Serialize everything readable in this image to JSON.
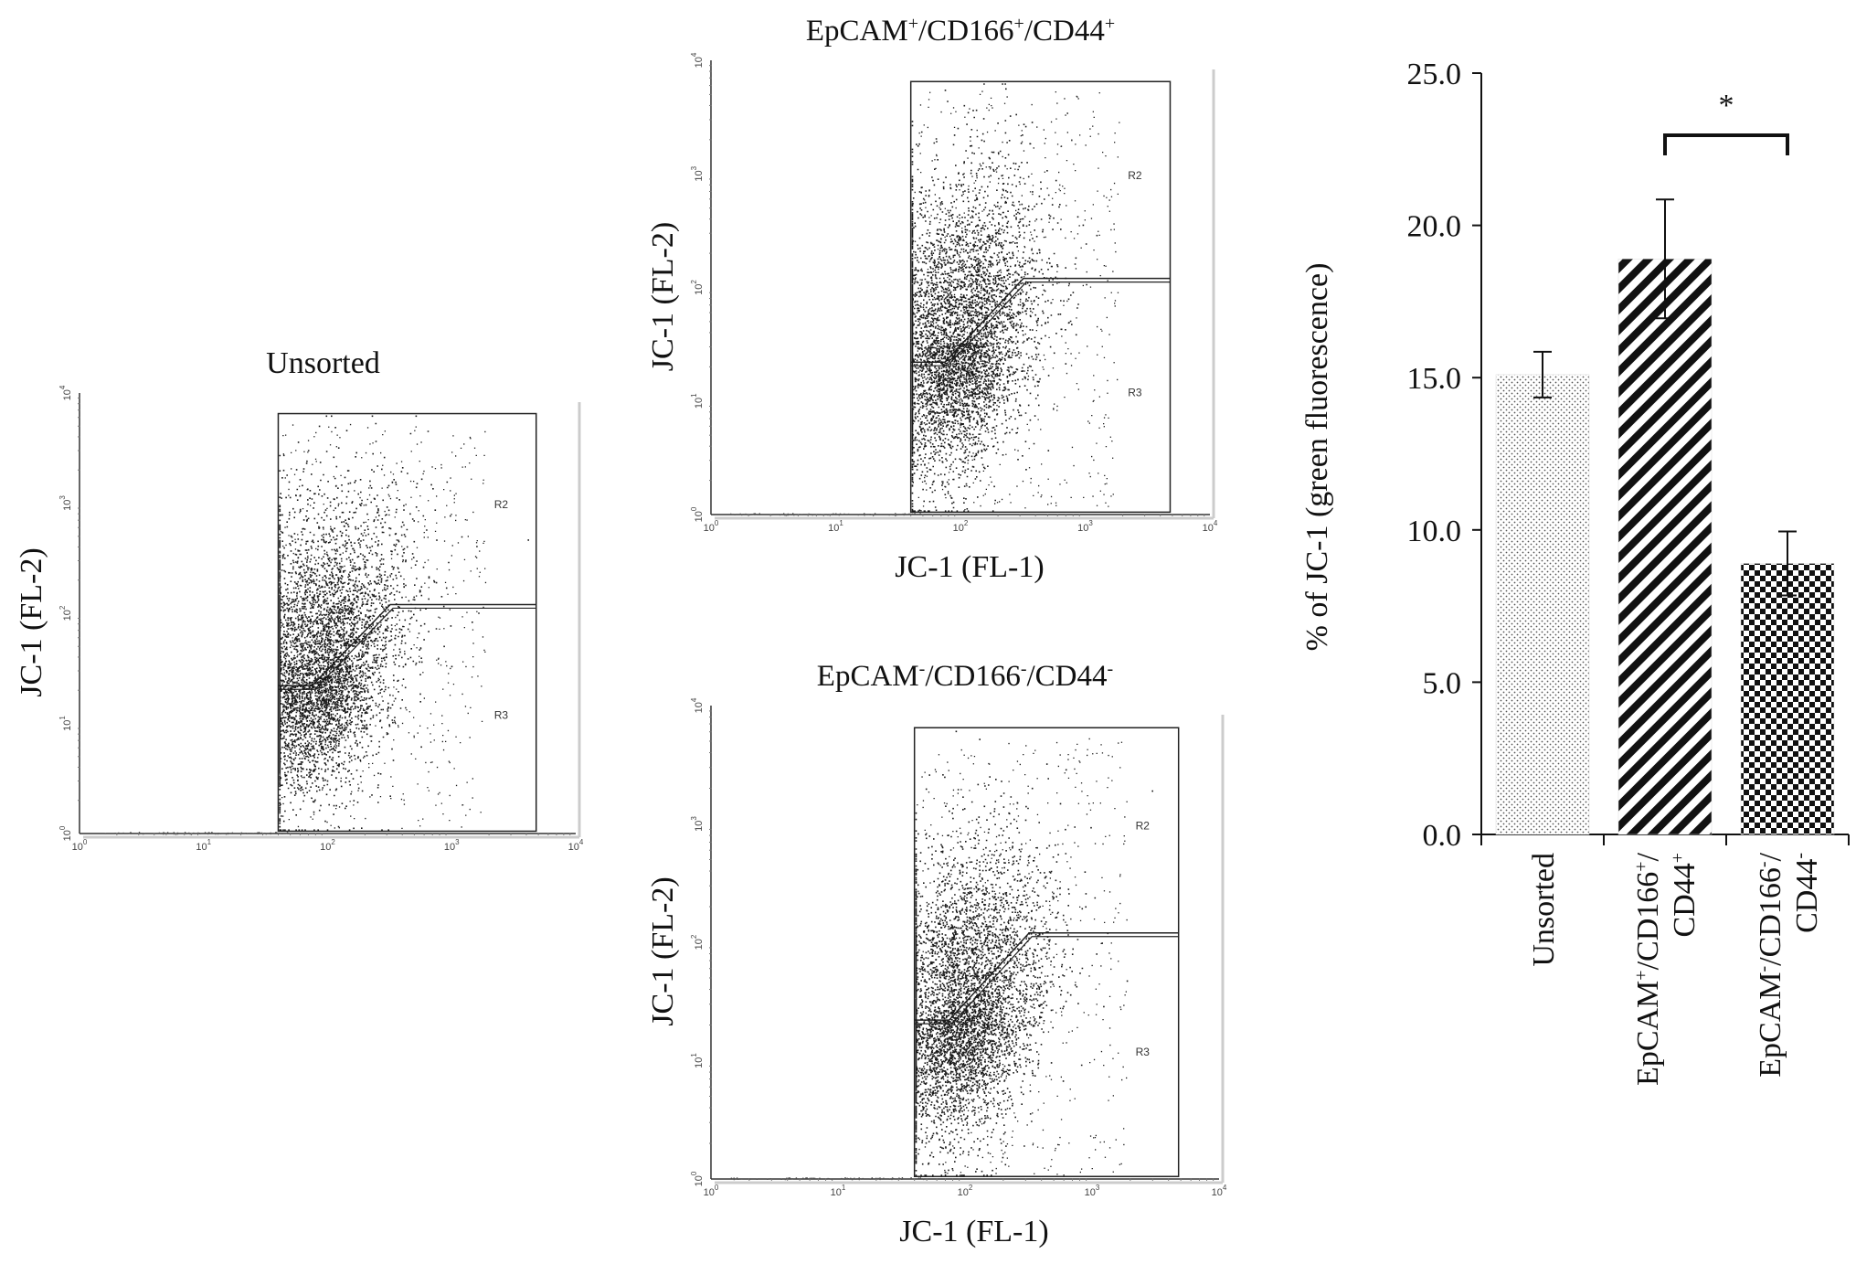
{
  "colors": {
    "ink": "#111111",
    "dot": "#1a1a1a",
    "frame": "#333333",
    "gate": "#222222"
  },
  "chart_data": [
    {
      "type": "scatter",
      "title": "Unsorted",
      "xlabel": "",
      "ylabel": "JC-1 (FL-2)",
      "scale": "log",
      "xlim": [
        1,
        10000
      ],
      "ylim": [
        1,
        10000
      ],
      "x_ticks": [
        "10",
        "10",
        "10",
        "10",
        "10"
      ],
      "x_tick_exponents": [
        "0",
        "1",
        "2",
        "3",
        "4"
      ],
      "y_ticks": [
        "10",
        "10",
        "10",
        "10",
        "10"
      ],
      "y_tick_exponents": [
        "0",
        "1",
        "2",
        "3",
        "4"
      ],
      "gates": [
        "R2",
        "R3"
      ],
      "population": {
        "approx_center": [
          70,
          70
        ],
        "dense_cell_count": "many"
      }
    },
    {
      "type": "scatter",
      "title_parts": [
        {
          "text": "EpCAM",
          "sup": "+"
        },
        {
          "text": "/CD166",
          "sup": "+"
        },
        {
          "text": "/CD44",
          "sup": "+"
        }
      ],
      "xlabel": "JC-1 (FL-1)",
      "ylabel": "JC-1 (FL-2)",
      "scale": "log",
      "xlim": [
        1,
        10000
      ],
      "ylim": [
        1,
        10000
      ],
      "x_ticks": [
        "10",
        "10",
        "10",
        "10",
        "10"
      ],
      "x_tick_exponents": [
        "0",
        "1",
        "2",
        "3",
        "4"
      ],
      "y_ticks": [
        "10",
        "10",
        "10",
        "10",
        "10"
      ],
      "y_tick_exponents": [
        "0",
        "1",
        "2",
        "3",
        "4"
      ],
      "gates": [
        "R2",
        "R3"
      ],
      "population": {
        "approx_center": [
          80,
          110
        ]
      }
    },
    {
      "type": "scatter",
      "title_parts": [
        {
          "text": "EpCAM",
          "sup": "-"
        },
        {
          "text": "/CD166",
          "sup": "-"
        },
        {
          "text": "/CD44",
          "sup": "-"
        }
      ],
      "xlabel": "JC-1 (FL-1)",
      "ylabel": "JC-1 (FL-2)",
      "scale": "log",
      "xlim": [
        1,
        10000
      ],
      "ylim": [
        1,
        10000
      ],
      "x_ticks": [
        "10",
        "10",
        "10",
        "10",
        "10"
      ],
      "x_tick_exponents": [
        "0",
        "1",
        "2",
        "3",
        "4"
      ],
      "y_ticks": [
        "10",
        "10",
        "10",
        "10",
        "10"
      ],
      "y_tick_exponents": [
        "0",
        "1",
        "2",
        "3",
        "4"
      ],
      "gates": [
        "R2",
        "R3"
      ],
      "population": {
        "approx_center": [
          90,
          120
        ]
      }
    },
    {
      "type": "bar",
      "ylabel": "% of JC-1 (green fluorescence)",
      "ylim": [
        0,
        25
      ],
      "y_ticks": [
        "0.0",
        "5.0",
        "10.0",
        "15.0",
        "20.0",
        "25.0"
      ],
      "categories": [
        {
          "lines": [
            [
              {
                "text": "Unsorted",
                "sup": ""
              }
            ]
          ]
        },
        {
          "lines": [
            [
              {
                "text": "EpCAM",
                "sup": "+"
              },
              {
                "text": "/CD166",
                "sup": "+"
              },
              {
                "text": "/",
                "sup": ""
              }
            ],
            [
              {
                "text": "CD44",
                "sup": "+"
              }
            ]
          ]
        },
        {
          "lines": [
            [
              {
                "text": "EpCAM",
                "sup": "-"
              },
              {
                "text": "/CD166",
                "sup": "-"
              },
              {
                "text": "/",
                "sup": ""
              }
            ],
            [
              {
                "text": "CD44",
                "sup": "-"
              }
            ]
          ]
        }
      ],
      "values": [
        15.1,
        18.9,
        8.9
      ],
      "errors": [
        0.75,
        1.95,
        1.05
      ],
      "fill_patterns": [
        "dots",
        "diagonal-stripes",
        "checkerboard"
      ],
      "significance": {
        "label": "*",
        "between": [
          1,
          2
        ]
      }
    }
  ]
}
